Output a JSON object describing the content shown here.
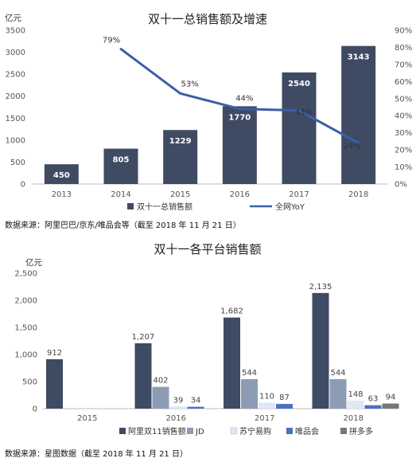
{
  "chart_data": [
    {
      "type": "bar",
      "title": "双十一总销售额及增速",
      "unit_label": "亿元",
      "categories": [
        "2013",
        "2014",
        "2015",
        "2016",
        "2017",
        "2018"
      ],
      "series": [
        {
          "name": "双十一总销售额",
          "type": "bar",
          "axis": "left",
          "values": [
            450,
            805,
            1229,
            1770,
            2540,
            3143
          ],
          "labels": [
            "450",
            "805",
            "1229",
            "1770",
            "2540",
            "3143"
          ]
        },
        {
          "name": "全网YoY",
          "type": "line",
          "axis": "right",
          "values": [
            null,
            79,
            53,
            44,
            43,
            24
          ],
          "labels": [
            "",
            "79%",
            "53%",
            "44%",
            "43%",
            "24%"
          ]
        }
      ],
      "y_left": {
        "min": 0,
        "max": 3500,
        "ticks": [
          0,
          500,
          1000,
          1500,
          2000,
          2500,
          3000,
          3500
        ],
        "tick_labels": [
          "0",
          "500",
          "1000",
          "1500",
          "2000",
          "2500",
          "3000",
          "3500"
        ]
      },
      "y_right": {
        "min": 0,
        "max": 90,
        "ticks": [
          0,
          10,
          20,
          30,
          40,
          50,
          60,
          70,
          80,
          90
        ],
        "tick_labels": [
          "0%",
          "10%",
          "20%",
          "30%",
          "40%",
          "50%",
          "60%",
          "70%",
          "80%",
          "90%"
        ]
      },
      "grid": false,
      "legend": "bottom",
      "source": "数据来源：阿里巴巴/京东/唯品会等（截至 2018 年 11 月 21 日）",
      "colors": {
        "bar": "#3f4b63",
        "line": "#3b5fa9"
      }
    },
    {
      "type": "bar",
      "title": "双十一各平台销售额",
      "unit_label": "亿元",
      "categories": [
        "2015",
        "2016",
        "2017",
        "2018"
      ],
      "series": [
        {
          "name": "阿里双11销售额",
          "values": [
            912,
            1207,
            1682,
            2135
          ],
          "labels": [
            "912",
            "1,207",
            "1,682",
            "2,135"
          ],
          "color": "#3f4b63"
        },
        {
          "name": "JD",
          "values": [
            null,
            402,
            544,
            544
          ],
          "labels": [
            "",
            "402",
            "544",
            "544"
          ],
          "color": "#8c9cb5"
        },
        {
          "name": "苏宁易购",
          "values": [
            null,
            39,
            110,
            148
          ],
          "labels": [
            "",
            "39",
            "110",
            "148"
          ],
          "color": "#dfe8f3"
        },
        {
          "name": "唯品会",
          "values": [
            null,
            34,
            87,
            63
          ],
          "labels": [
            "",
            "34",
            "87",
            "63"
          ],
          "color": "#4a72c2"
        },
        {
          "name": "拼多多",
          "values": [
            null,
            null,
            null,
            94
          ],
          "labels": [
            "",
            "",
            "",
            "94"
          ],
          "color": "#777777"
        }
      ],
      "y": {
        "min": 0,
        "max": 2500,
        "ticks": [
          0,
          500,
          1000,
          1500,
          2000,
          2500
        ],
        "tick_labels": [
          "0",
          "500",
          "1,000",
          "1,500",
          "2,000",
          "2,500"
        ]
      },
      "grid": false,
      "legend": "bottom",
      "source": "数据来源：星图数据（截至 2018 年 11 月 21 日）"
    }
  ]
}
